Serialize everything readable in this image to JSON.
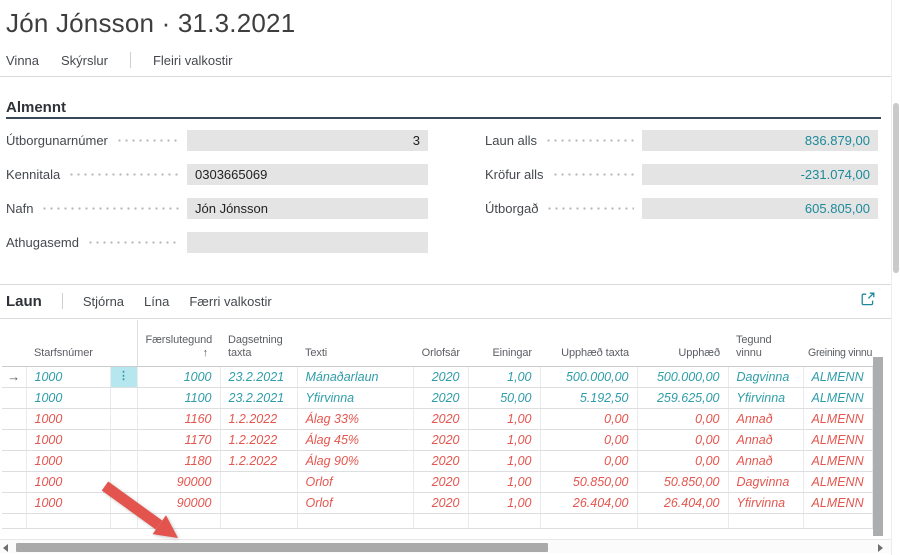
{
  "page": {
    "title": "Jón Jónsson · 31.3.2021"
  },
  "top_menu": {
    "items": [
      "Vinna",
      "Skýrslur"
    ],
    "more_label": "Fleiri valkostir"
  },
  "general": {
    "caption": "Almennt",
    "fields_left": [
      {
        "label": "Útborgunarnúmer",
        "value": "3"
      },
      {
        "label": "Kennitala",
        "value": "0303665069"
      },
      {
        "label": "Nafn",
        "value": "Jón Jónsson"
      },
      {
        "label": "Athugasemd",
        "value": ""
      }
    ],
    "fields_right": [
      {
        "label": "Laun alls",
        "value": "836.879,00"
      },
      {
        "label": "Kröfur alls",
        "value": "-231.074,00"
      },
      {
        "label": "Útborgað",
        "value": "605.805,00"
      }
    ]
  },
  "lines": {
    "caption": "Laun",
    "menu": [
      "Stjórna",
      "Lína",
      "Færri valkostir"
    ],
    "table": {
      "columns": [
        {
          "label": "Starfsnúmer",
          "align": "left"
        },
        {
          "label": "Færslutegund",
          "align": "right",
          "sort": "↑"
        },
        {
          "label": "Dagsetning taxta",
          "align": "left"
        },
        {
          "label": "Texti",
          "align": "left"
        },
        {
          "label": "Orlofsár",
          "align": "right"
        },
        {
          "label": "Einingar",
          "align": "right"
        },
        {
          "label": "Upphæð taxta",
          "align": "right"
        },
        {
          "label": "Upphæð",
          "align": "right"
        },
        {
          "label": "Tegund vinnu",
          "align": "left"
        },
        {
          "label": "Greining vinnu",
          "align": "left"
        }
      ],
      "rows": [
        {
          "selected": true,
          "style": "teal",
          "cells": [
            "1000",
            "1000",
            "23.2.2021",
            "Mánaðarlaun",
            "2020",
            "1,00",
            "500.000,00",
            "500.000,00",
            "Dagvinna",
            "ALMENN"
          ]
        },
        {
          "selected": false,
          "style": "teal",
          "cells": [
            "1000",
            "1100",
            "23.2.2021",
            "Yfirvinna",
            "2020",
            "50,00",
            "5.192,50",
            "259.625,00",
            "Yfirvinna",
            "ALMENN"
          ]
        },
        {
          "selected": false,
          "style": "red",
          "cells": [
            "1000",
            "1160",
            "1.2.2022",
            "Álag 33%",
            "2020",
            "1,00",
            "0,00",
            "0,00",
            "Annað",
            "ALMENN"
          ]
        },
        {
          "selected": false,
          "style": "red",
          "cells": [
            "1000",
            "1170",
            "1.2.2022",
            "Álag 45%",
            "2020",
            "1,00",
            "0,00",
            "0,00",
            "Annað",
            "ALMENN"
          ]
        },
        {
          "selected": false,
          "style": "red",
          "cells": [
            "1000",
            "1180",
            "1.2.2022",
            "Álag 90%",
            "2020",
            "1,00",
            "0,00",
            "0,00",
            "Annað",
            "ALMENN"
          ]
        },
        {
          "selected": false,
          "style": "red",
          "cells": [
            "1000",
            "90000",
            "",
            "Orlof",
            "2020",
            "1,00",
            "50.850,00",
            "50.850,00",
            "Dagvinna",
            "ALMENN"
          ]
        },
        {
          "selected": false,
          "style": "red",
          "cells": [
            "1000",
            "90000",
            "",
            "Orlof",
            "2020",
            "1,00",
            "26.404,00",
            "26.404,00",
            "Yfirvinna",
            "ALMENN"
          ]
        }
      ]
    }
  },
  "icons": {
    "selected_row_marker": "→",
    "row_options": "⋮",
    "sort_ascending": "↑",
    "focus_mode": "expand-arrow-square"
  },
  "colors": {
    "accent_teal": "#1d8a99",
    "row_teal": "#2f9da9",
    "row_red": "#e4564f",
    "selected_cell_bg": "#b7e7ee",
    "caption_underline": "#3a485c",
    "annotation_red": "#e2544d"
  }
}
